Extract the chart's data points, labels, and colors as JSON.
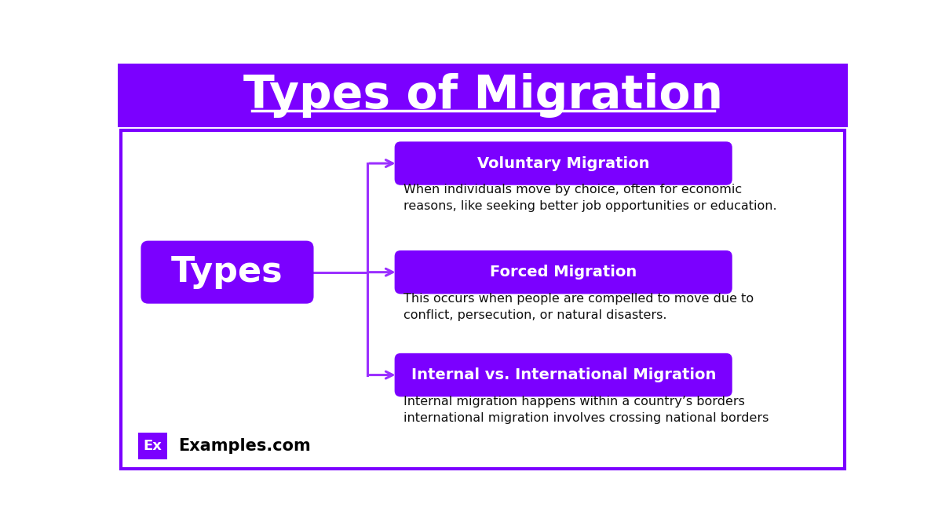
{
  "title": "Types of Migration",
  "title_color": "#ffffff",
  "title_bg_color": "#7B00FF",
  "main_node_text": "Types",
  "main_node_color": "#7B00FF",
  "main_node_text_color": "#ffffff",
  "border_color": "#7B00FF",
  "background_color": "#ffffff",
  "connector_color": "#9B30FF",
  "items": [
    {
      "label": "Voluntary Migration",
      "description": "When individuals move by choice, often for economic\nreasons, like seeking better job opportunities or education.",
      "box_color": "#7B00FF",
      "text_color": "#ffffff",
      "desc_color": "#111111"
    },
    {
      "label": "Forced Migration",
      "description": "This occurs when people are compelled to move due to\nconflict, persecution, or natural disasters.",
      "box_color": "#7B00FF",
      "text_color": "#ffffff",
      "desc_color": "#111111"
    },
    {
      "label": "Internal vs. International Migration",
      "description": "Internal migration happens within a country’s borders\ninternational migration involves crossing national borders",
      "box_color": "#7B00FF",
      "text_color": "#ffffff",
      "desc_color": "#111111"
    }
  ],
  "watermark_bg": "#7B00FF",
  "watermark_text": "Ex",
  "watermark_label": "Examples.com",
  "watermark_text_color": "#ffffff",
  "watermark_label_color": "#000000"
}
